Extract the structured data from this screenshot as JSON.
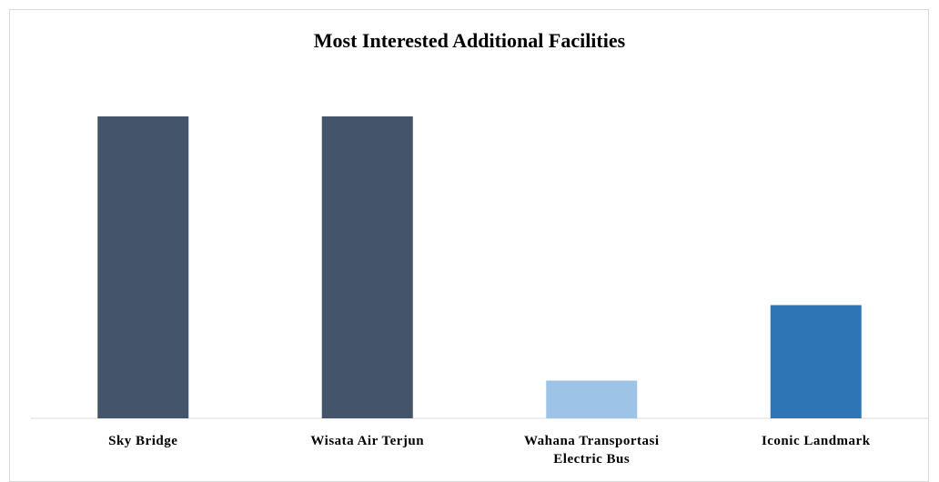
{
  "chart_data": {
    "type": "bar",
    "title": "Most Interested Additional Facilities",
    "categories": [
      "Sky Bridge",
      "Wisata Air Terjun",
      "Wahana Transportasi Electric Bus",
      "Iconic Landmark"
    ],
    "values": [
      8,
      8,
      1,
      3
    ],
    "colors": [
      "#44546a",
      "#44546a",
      "#9dc3e6",
      "#2e75b6"
    ]
  }
}
